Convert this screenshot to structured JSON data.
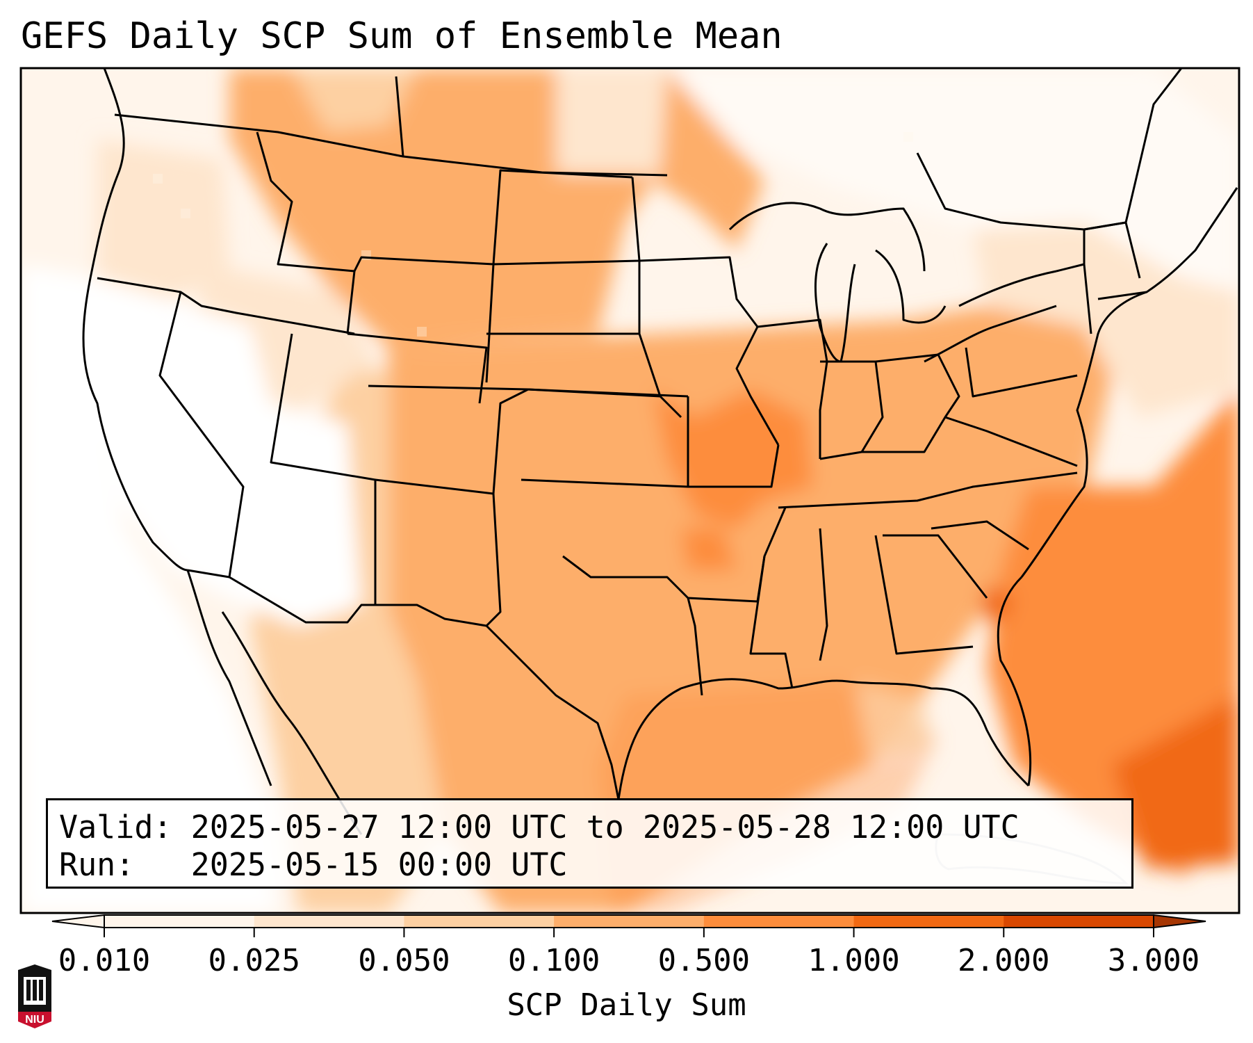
{
  "title": "GEFS Daily SCP Sum of Ensemble Mean",
  "valid_label": "Valid:",
  "valid_value": "2025-05-27 12:00 UTC to 2025-05-28 12:00 UTC",
  "run_label": "Run:",
  "run_value": "2025-05-15 00:00 UTC",
  "colorbar": {
    "label": "SCP Daily Sum",
    "ticks": [
      "0.010",
      "0.025",
      "0.050",
      "0.100",
      "0.500",
      "1.000",
      "2.000",
      "3.000"
    ],
    "colors": [
      "#fff5eb",
      "#fee6ce",
      "#fdd0a2",
      "#fdae6b",
      "#fd8d3c",
      "#f16913",
      "#d94801",
      "#a63603"
    ],
    "extend": "both"
  },
  "logo": {
    "text": "NIU",
    "colors": [
      "#000000",
      "#c8102e",
      "#ffffff"
    ]
  },
  "map": {
    "region": "Continental United States",
    "colors": {
      "land_outline": "#000000",
      "cuba_outline": "#c8c8c8",
      "field_none": "#ffffff",
      "field_levels": [
        "#fff5eb",
        "#fee6ce",
        "#fdd0a2",
        "#fdae6b",
        "#fd8d3c",
        "#f16913"
      ]
    }
  }
}
